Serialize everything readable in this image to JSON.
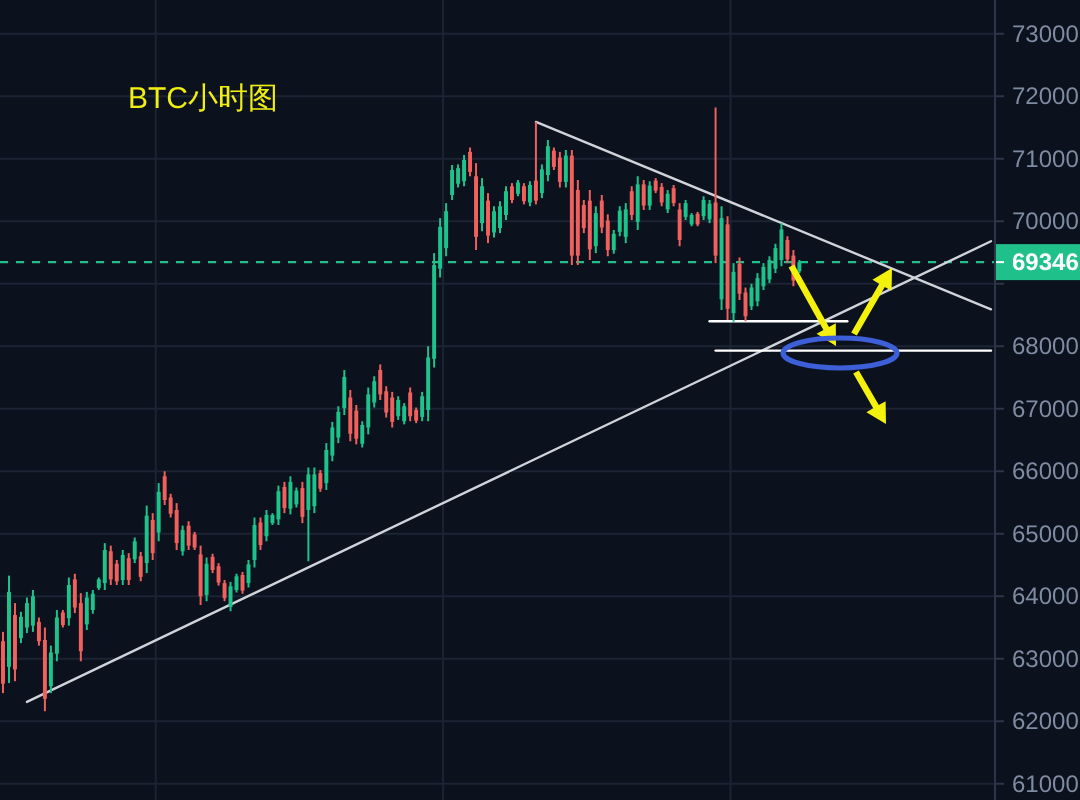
{
  "chart_data": {
    "type": "candlestick",
    "title": "BTC小时图",
    "categories": [
      null,
      null,
      null,
      null,
      null,
      null,
      null,
      null,
      null,
      null,
      null,
      null,
      null,
      null,
      null,
      null,
      null,
      null,
      null,
      null,
      null,
      null,
      null,
      null,
      null,
      null,
      null,
      null,
      null,
      null,
      null,
      null,
      null,
      null,
      null,
      null,
      null,
      null,
      null,
      null,
      null,
      null,
      null,
      null,
      null,
      null,
      null,
      null,
      null,
      null,
      null,
      null,
      null,
      null,
      null,
      null,
      null,
      null,
      null,
      null,
      null,
      null,
      null,
      null,
      null,
      null,
      null,
      null,
      null,
      null,
      null,
      null,
      null,
      null,
      null,
      null,
      null,
      null,
      null,
      null,
      null,
      null,
      null,
      null,
      null,
      null,
      null,
      null,
      null,
      null,
      null,
      null,
      null,
      null,
      null,
      null,
      null,
      null,
      null,
      null,
      null,
      null,
      null,
      null,
      null,
      null,
      null,
      null,
      null,
      null,
      null,
      null,
      null,
      null,
      null,
      null,
      null,
      null,
      null,
      null,
      null,
      null,
      null,
      null,
      null,
      null,
      null,
      null,
      null,
      null,
      null,
      null,
      null,
      null,
      null,
      null,
      null,
      null,
      null,
      null,
      null,
      null,
      null,
      null,
      null,
      null,
      null,
      null,
      null,
      null,
      null,
      null,
      null,
      null,
      null,
      null,
      null,
      null,
      null,
      null,
      null,
      null,
      null,
      null,
      null,
      null
    ],
    "ohlc": [
      [
        63280,
        63430,
        62450,
        62600
      ],
      [
        62870,
        64330,
        62610,
        64070
      ],
      [
        63700,
        63890,
        62640,
        62830
      ],
      [
        63330,
        63750,
        63250,
        63670
      ],
      [
        63500,
        63980,
        63410,
        63890
      ],
      [
        63530,
        64100,
        63430,
        64000
      ],
      [
        63590,
        63660,
        63210,
        63280
      ],
      [
        63300,
        63500,
        62160,
        62360
      ],
      [
        62560,
        63210,
        62450,
        63100
      ],
      [
        63080,
        63780,
        62960,
        63660
      ],
      [
        63740,
        63780,
        63500,
        63540
      ],
      [
        63650,
        64300,
        63530,
        64180
      ],
      [
        64270,
        64360,
        63730,
        63820
      ],
      [
        63890,
        64050,
        62960,
        63120
      ],
      [
        63550,
        64070,
        63460,
        63980
      ],
      [
        63780,
        64100,
        63720,
        64040
      ],
      [
        64130,
        64300,
        64100,
        64270
      ],
      [
        64210,
        64850,
        64100,
        64740
      ],
      [
        64720,
        64810,
        64180,
        64270
      ],
      [
        64520,
        64580,
        64180,
        64240
      ],
      [
        64260,
        64740,
        64180,
        64660
      ],
      [
        64610,
        64690,
        64180,
        64260
      ],
      [
        64590,
        64940,
        64530,
        64880
      ],
      [
        64640,
        64710,
        64240,
        64310
      ],
      [
        64530,
        65450,
        64370,
        65290
      ],
      [
        65220,
        65330,
        64580,
        64690
      ],
      [
        65020,
        65810,
        64880,
        65670
      ],
      [
        65920,
        66000,
        65460,
        65540
      ],
      [
        65580,
        65640,
        65260,
        65320
      ],
      [
        65380,
        65490,
        64740,
        64850
      ],
      [
        64720,
        65130,
        64650,
        65060
      ],
      [
        65130,
        65200,
        64740,
        64810
      ],
      [
        64990,
        65030,
        64740,
        64780
      ],
      [
        64670,
        64810,
        63860,
        64000
      ],
      [
        64020,
        64620,
        63920,
        64520
      ],
      [
        64630,
        64680,
        64370,
        64420
      ],
      [
        64480,
        64530,
        64170,
        64220
      ],
      [
        64210,
        64260,
        63920,
        63970
      ],
      [
        63830,
        64230,
        63760,
        64160
      ],
      [
        64100,
        64360,
        64060,
        64320
      ],
      [
        64340,
        64390,
        64040,
        64090
      ],
      [
        64210,
        64580,
        64140,
        64510
      ],
      [
        64580,
        65260,
        64460,
        65140
      ],
      [
        65180,
        65260,
        64740,
        64820
      ],
      [
        64960,
        65380,
        64880,
        65300
      ],
      [
        65170,
        65330,
        65140,
        65300
      ],
      [
        65230,
        65770,
        65140,
        65680
      ],
      [
        65750,
        65830,
        65330,
        65410
      ],
      [
        65400,
        65920,
        65310,
        65830
      ],
      [
        65470,
        65740,
        65420,
        65690
      ],
      [
        65730,
        65830,
        65170,
        65270
      ],
      [
        65380,
        66060,
        64560,
        65950
      ],
      [
        65440,
        66060,
        65330,
        65950
      ],
      [
        65970,
        66020,
        65670,
        65720
      ],
      [
        65810,
        66450,
        65700,
        66340
      ],
      [
        66250,
        66790,
        66160,
        66700
      ],
      [
        66540,
        67040,
        66450,
        66950
      ],
      [
        67010,
        67620,
        66900,
        67510
      ],
      [
        67180,
        67300,
        66480,
        66600
      ],
      [
        66970,
        67060,
        66430,
        66520
      ],
      [
        66440,
        66800,
        66380,
        66740
      ],
      [
        66700,
        67340,
        66590,
        67230
      ],
      [
        67100,
        67520,
        67020,
        67440
      ],
      [
        67620,
        67710,
        67140,
        67230
      ],
      [
        67280,
        67360,
        66860,
        66940
      ],
      [
        67180,
        67270,
        66700,
        66790
      ],
      [
        66880,
        67200,
        66820,
        67140
      ],
      [
        66800,
        67090,
        66750,
        67040
      ],
      [
        67260,
        67340,
        66800,
        66880
      ],
      [
        66980,
        67020,
        66770,
        66810
      ],
      [
        66870,
        67270,
        66800,
        67200
      ],
      [
        66980,
        68000,
        66800,
        67820
      ],
      [
        67800,
        69490,
        67660,
        69300
      ],
      [
        69240,
        70050,
        69100,
        69910
      ],
      [
        69570,
        70290,
        69440,
        70160
      ],
      [
        70420,
        70900,
        70340,
        70820
      ],
      [
        70600,
        70910,
        70540,
        70850
      ],
      [
        70640,
        71060,
        70560,
        70980
      ],
      [
        71110,
        71180,
        70720,
        70790
      ],
      [
        70720,
        70930,
        69540,
        69750
      ],
      [
        69970,
        70690,
        69840,
        70560
      ],
      [
        70330,
        70450,
        69650,
        69770
      ],
      [
        69820,
        70240,
        69740,
        70160
      ],
      [
        69890,
        70320,
        69810,
        70240
      ],
      [
        70100,
        70560,
        70020,
        70480
      ],
      [
        70560,
        70610,
        70290,
        70340
      ],
      [
        70440,
        70660,
        70400,
        70620
      ],
      [
        70560,
        70610,
        70270,
        70320
      ],
      [
        70300,
        70640,
        70240,
        70580
      ],
      [
        70650,
        71590,
        70270,
        70330
      ],
      [
        70450,
        70910,
        70370,
        70830
      ],
      [
        70740,
        71300,
        70640,
        71200
      ],
      [
        71130,
        71180,
        70820,
        70870
      ],
      [
        71020,
        71110,
        70540,
        70630
      ],
      [
        70630,
        71140,
        70540,
        71050
      ],
      [
        71050,
        71140,
        69300,
        69450
      ],
      [
        70500,
        70660,
        69300,
        69450
      ],
      [
        70260,
        70340,
        69810,
        69890
      ],
      [
        70330,
        70500,
        69380,
        69550
      ],
      [
        69600,
        70240,
        69490,
        70130
      ],
      [
        70330,
        70420,
        69810,
        69900
      ],
      [
        70010,
        70110,
        69440,
        69540
      ],
      [
        69540,
        69860,
        69480,
        69800
      ],
      [
        69830,
        70240,
        69760,
        70170
      ],
      [
        69750,
        70290,
        69650,
        70190
      ],
      [
        70480,
        70560,
        70020,
        70100
      ],
      [
        69990,
        70720,
        69860,
        70590
      ],
      [
        70590,
        70660,
        70180,
        70250
      ],
      [
        70250,
        70640,
        70180,
        70570
      ],
      [
        70650,
        70690,
        70450,
        70490
      ],
      [
        70550,
        70610,
        70240,
        70300
      ],
      [
        70190,
        70500,
        70130,
        70440
      ],
      [
        70530,
        70580,
        70240,
        70290
      ],
      [
        70190,
        70290,
        69600,
        69700
      ],
      [
        70070,
        70340,
        70020,
        70290
      ],
      [
        69950,
        70130,
        69920,
        70100
      ],
      [
        70120,
        70150,
        69920,
        69950
      ],
      [
        70080,
        70400,
        70020,
        70340
      ],
      [
        70030,
        70340,
        69970,
        70280
      ],
      [
        70300,
        71820,
        69330,
        69450
      ],
      [
        68750,
        70240,
        68580,
        70050
      ],
      [
        69950,
        70080,
        68420,
        68600
      ],
      [
        68530,
        69330,
        68390,
        69190
      ],
      [
        69320,
        69420,
        68740,
        68840
      ],
      [
        68860,
        68940,
        68400,
        68480
      ],
      [
        68640,
        69000,
        68580,
        68940
      ],
      [
        68720,
        69170,
        68640,
        69090
      ],
      [
        68960,
        69330,
        68900,
        69270
      ],
      [
        69070,
        69440,
        69010,
        69380
      ],
      [
        69240,
        69640,
        69170,
        69570
      ],
      [
        69380,
        69970,
        69280,
        69870
      ],
      [
        69700,
        69760,
        69330,
        69390
      ],
      [
        69450,
        69540,
        68960,
        69050
      ],
      [
        69200,
        69380,
        69170,
        69346
      ],
      null,
      null,
      null,
      null,
      null,
      null,
      null,
      null,
      null,
      null,
      null,
      null,
      null,
      null,
      null,
      null,
      null,
      null,
      null,
      null,
      null,
      null,
      null,
      null,
      null,
      null,
      null,
      null,
      null,
      null,
      null,
      null
    ],
    "series": [
      {
        "type": "line",
        "color": "#cfd3da",
        "values": [
          null,
          null,
          null,
          null,
          62310,
          null,
          null,
          null,
          null,
          null,
          null,
          null,
          null,
          null,
          null,
          null,
          null,
          null,
          null,
          null,
          null,
          null,
          null,
          null,
          null,
          null,
          null,
          null,
          null,
          null,
          null,
          null,
          null,
          null,
          null,
          null,
          null,
          null,
          null,
          null,
          null,
          null,
          null,
          null,
          null,
          null,
          null,
          null,
          null,
          null,
          null,
          null,
          null,
          null,
          null,
          null,
          null,
          null,
          null,
          null,
          null,
          null,
          null,
          null,
          null,
          null,
          null,
          null,
          null,
          null,
          null,
          null,
          null,
          null,
          null,
          null,
          null,
          null,
          null,
          null,
          null,
          null,
          null,
          null,
          null,
          null,
          null,
          null,
          null,
          null,
          null,
          null,
          null,
          null,
          null,
          null,
          null,
          null,
          null,
          null,
          null,
          null,
          null,
          null,
          null,
          null,
          null,
          null,
          null,
          null,
          null,
          null,
          null,
          null,
          null,
          null,
          null,
          null,
          null,
          null,
          null,
          null,
          null,
          null,
          null,
          null,
          null,
          null,
          null,
          null,
          null,
          null,
          null,
          null,
          null,
          null,
          null,
          null,
          null,
          null,
          null,
          null,
          null,
          null,
          null,
          null,
          null,
          null,
          null,
          null,
          null,
          null,
          null,
          null,
          null,
          null,
          null,
          null,
          null,
          null,
          null,
          null,
          null,
          null,
          null,
          69680
        ]
      },
      {
        "type": "line",
        "color": "#cfd3da",
        "values": [
          null,
          null,
          null,
          null,
          null,
          null,
          null,
          null,
          null,
          null,
          null,
          null,
          null,
          null,
          null,
          null,
          null,
          null,
          null,
          null,
          null,
          null,
          null,
          null,
          null,
          null,
          null,
          null,
          null,
          null,
          null,
          null,
          null,
          null,
          null,
          null,
          null,
          null,
          null,
          null,
          null,
          null,
          null,
          null,
          null,
          null,
          null,
          null,
          null,
          null,
          null,
          null,
          null,
          null,
          null,
          null,
          null,
          null,
          null,
          null,
          null,
          null,
          null,
          null,
          null,
          null,
          null,
          null,
          null,
          null,
          null,
          null,
          null,
          null,
          null,
          null,
          null,
          null,
          null,
          null,
          null,
          null,
          null,
          null,
          null,
          null,
          null,
          null,
          null,
          71590,
          null,
          null,
          null,
          null,
          null,
          null,
          null,
          null,
          null,
          null,
          null,
          null,
          null,
          null,
          null,
          null,
          null,
          null,
          null,
          null,
          null,
          null,
          null,
          null,
          null,
          null,
          null,
          null,
          null,
          null,
          null,
          null,
          null,
          null,
          null,
          null,
          null,
          null,
          null,
          null,
          null,
          null,
          null,
          null,
          null,
          null,
          null,
          null,
          null,
          null,
          null,
          null,
          null,
          null,
          null,
          null,
          null,
          null,
          null,
          null,
          null,
          null,
          null,
          null,
          null,
          null,
          null,
          null,
          null,
          null,
          null,
          null,
          null,
          null,
          null,
          68590
        ]
      },
      {
        "type": "line",
        "color": "#ffffff",
        "values": [
          null,
          null,
          null,
          null,
          null,
          null,
          null,
          null,
          null,
          null,
          null,
          null,
          null,
          null,
          null,
          null,
          null,
          null,
          null,
          null,
          null,
          null,
          null,
          null,
          null,
          null,
          null,
          null,
          null,
          null,
          null,
          null,
          null,
          null,
          null,
          null,
          null,
          null,
          null,
          null,
          null,
          null,
          null,
          null,
          null,
          null,
          null,
          null,
          null,
          null,
          null,
          null,
          null,
          null,
          null,
          null,
          null,
          null,
          null,
          null,
          null,
          null,
          null,
          null,
          null,
          null,
          null,
          null,
          null,
          null,
          null,
          null,
          null,
          null,
          null,
          null,
          null,
          null,
          null,
          null,
          null,
          null,
          null,
          null,
          null,
          null,
          null,
          null,
          null,
          null,
          null,
          null,
          null,
          null,
          null,
          null,
          null,
          null,
          null,
          null,
          null,
          null,
          null,
          null,
          null,
          null,
          null,
          null,
          null,
          null,
          null,
          null,
          null,
          null,
          null,
          null,
          null,
          null,
          68400,
          null,
          null,
          null,
          null,
          null,
          null,
          null,
          null,
          null,
          null,
          null,
          null,
          null,
          null,
          null,
          null,
          null,
          null,
          null,
          null,
          null,
          null,
          68400,
          null,
          null,
          null,
          null,
          null,
          null,
          null,
          null,
          null,
          null,
          null,
          null,
          null,
          null,
          null,
          null,
          null,
          null,
          null,
          null,
          null,
          null,
          null,
          null
        ]
      },
      {
        "type": "line",
        "color": "#ffffff",
        "values": [
          null,
          null,
          null,
          null,
          null,
          null,
          null,
          null,
          null,
          null,
          null,
          null,
          null,
          null,
          null,
          null,
          null,
          null,
          null,
          null,
          null,
          null,
          null,
          null,
          null,
          null,
          null,
          null,
          null,
          null,
          null,
          null,
          null,
          null,
          null,
          null,
          null,
          null,
          null,
          null,
          null,
          null,
          null,
          null,
          null,
          null,
          null,
          null,
          null,
          null,
          null,
          null,
          null,
          null,
          null,
          null,
          null,
          null,
          null,
          null,
          null,
          null,
          null,
          null,
          null,
          null,
          null,
          null,
          null,
          null,
          null,
          null,
          null,
          null,
          null,
          null,
          null,
          null,
          null,
          null,
          null,
          null,
          null,
          null,
          null,
          null,
          null,
          null,
          null,
          null,
          null,
          null,
          null,
          null,
          null,
          null,
          null,
          null,
          null,
          null,
          null,
          null,
          null,
          null,
          null,
          null,
          null,
          null,
          null,
          null,
          null,
          null,
          null,
          null,
          null,
          null,
          null,
          null,
          null,
          67930,
          null,
          null,
          null,
          null,
          null,
          null,
          null,
          null,
          null,
          null,
          null,
          null,
          null,
          null,
          null,
          null,
          null,
          null,
          null,
          null,
          null,
          null,
          null,
          null,
          null,
          null,
          null,
          null,
          null,
          null,
          null,
          null,
          null,
          null,
          null,
          null,
          null,
          null,
          null,
          null,
          null,
          null,
          null,
          null,
          null,
          67930
        ]
      }
    ],
    "ylim": [
      60740,
      73540
    ],
    "yticks": [
      61000,
      62000,
      63000,
      64000,
      65000,
      66000,
      67000,
      68000,
      {
        "value": 69000,
        "label": null
      },
      70000,
      71000,
      72000,
      73000
    ],
    "grid": true,
    "tick_labels": "y",
    "ref_lines": [
      {
        "axis": "y",
        "value": 69346,
        "label": "69346",
        "color": "#1fc08a",
        "line_style": "dashed"
      }
    ]
  }
}
